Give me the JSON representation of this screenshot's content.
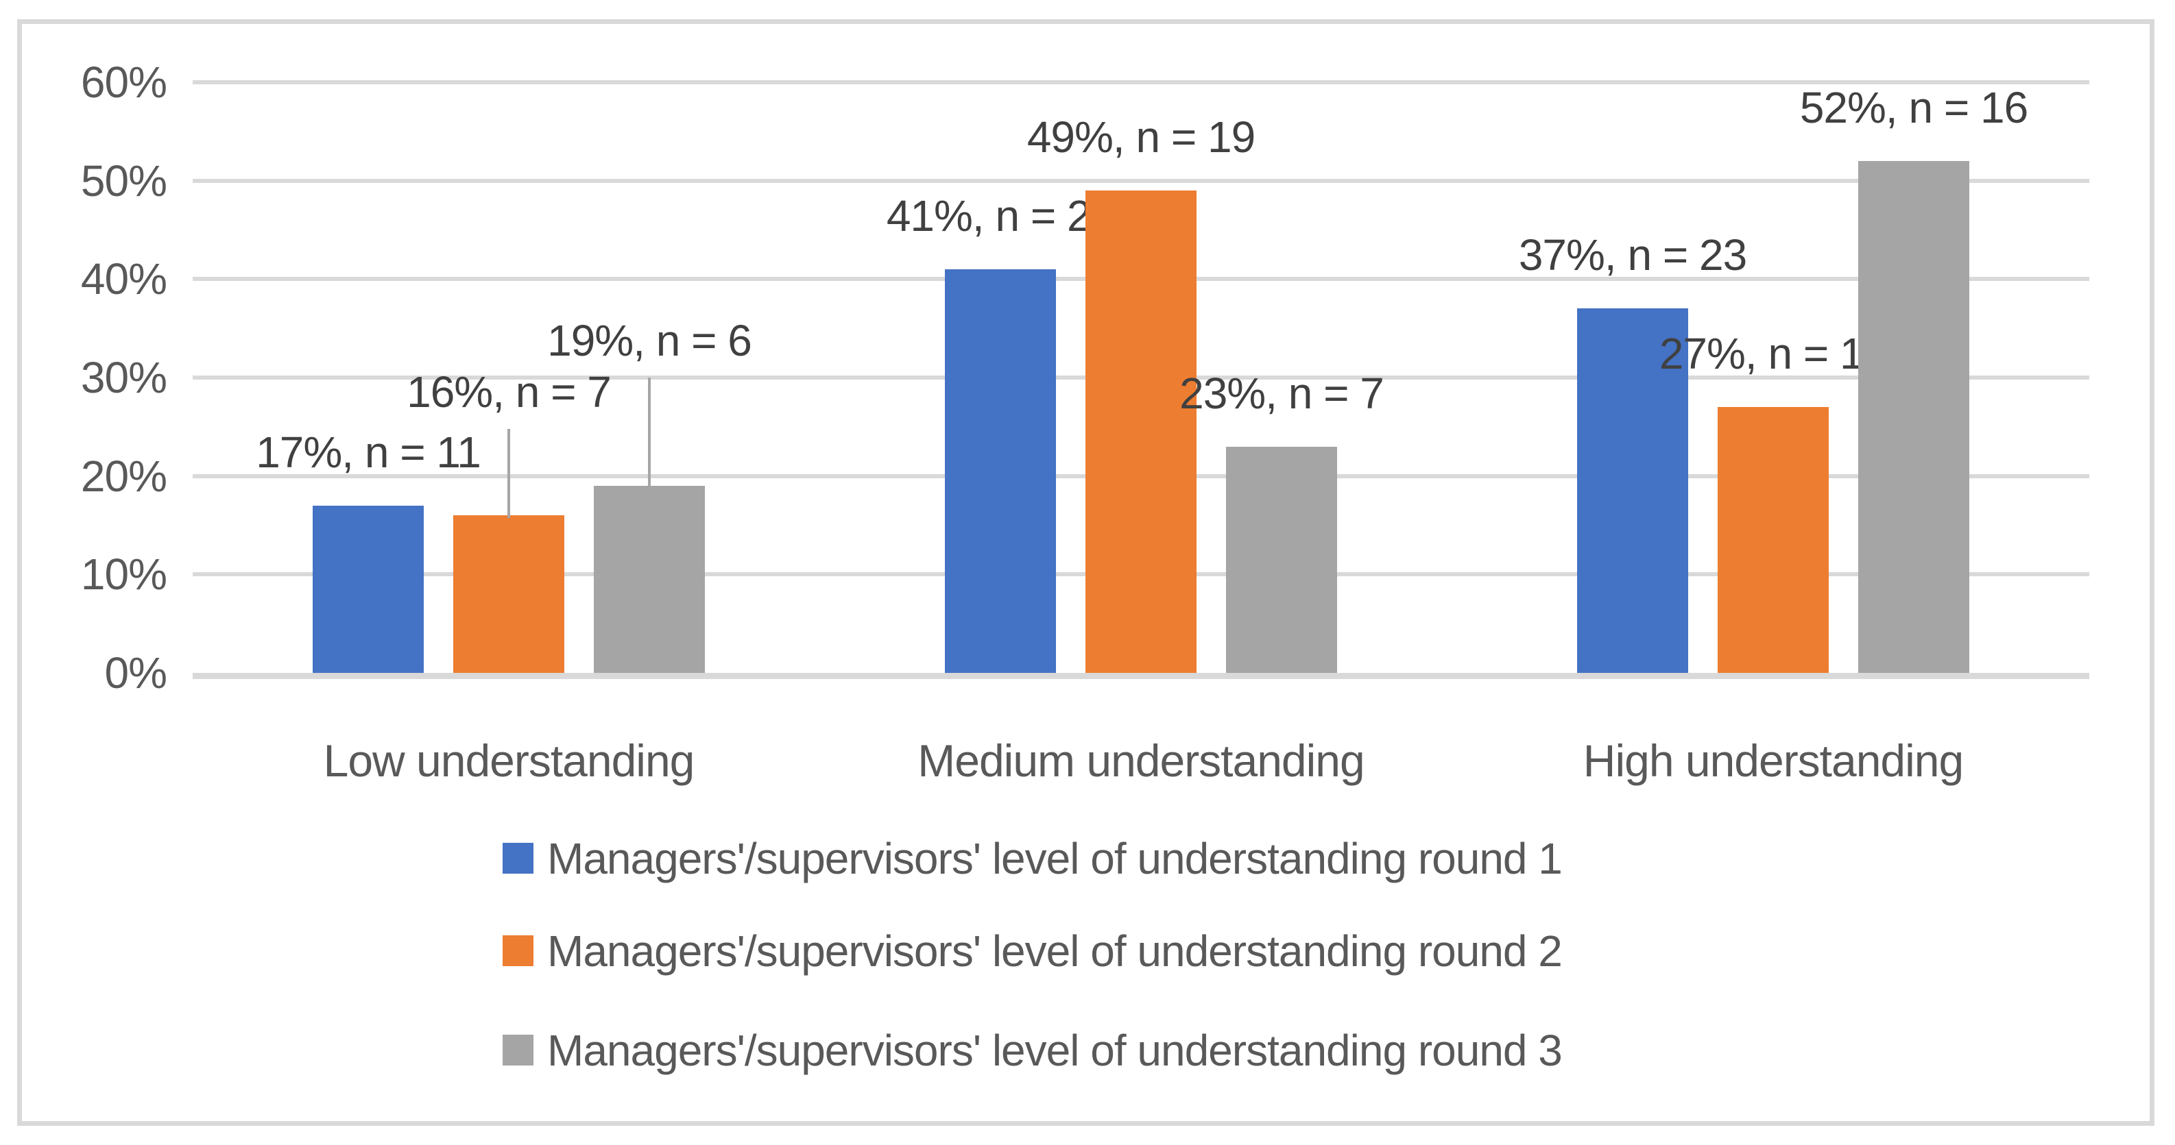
{
  "chart_data": {
    "type": "bar",
    "title": "",
    "categories": [
      "Low understanding",
      "Medium understanding",
      "High understanding"
    ],
    "series": [
      {
        "name": "Managers'/supervisors' level of understanding round 1",
        "color": "#4472C4",
        "values": [
          17,
          41,
          37
        ],
        "counts": [
          11,
          26,
          23
        ],
        "data_labels": [
          "17%, n = 11",
          "41%, n = 26",
          "37%, n = 23"
        ]
      },
      {
        "name": "Managers'/supervisors' level of understanding round 2",
        "color": "#ED7D31",
        "values": [
          16,
          49,
          27
        ],
        "counts": [
          7,
          19,
          10
        ],
        "data_labels": [
          "16%, n = 7",
          "49%, n = 19",
          "27%, n = 10"
        ]
      },
      {
        "name": "Managers'/supervisors' level of understanding round 3",
        "color": "#A5A5A5",
        "values": [
          19,
          23,
          52
        ],
        "counts": [
          6,
          7,
          16
        ],
        "data_labels": [
          "19%, n = 6",
          "23%, n = 7",
          "52%, n = 16"
        ]
      }
    ],
    "y_axis": {
      "ticks": [
        "60%",
        "50%",
        "40%",
        "30%",
        "20%",
        "10%",
        "0%"
      ],
      "min": 0,
      "max": 60,
      "unit": "percent"
    },
    "grid": true,
    "legend_position": "bottom",
    "label_layout": [
      [
        {
          "gap": 46,
          "leader": false
        },
        {
          "gap": 46,
          "leader": false
        },
        {
          "gap": 46,
          "leader": false
        }
      ],
      [
        {
          "gap": 148,
          "leader": true
        },
        {
          "gap": 46,
          "leader": false
        },
        {
          "gap": 46,
          "leader": false
        }
      ],
      [
        {
          "gap": 180,
          "leader": true
        },
        {
          "gap": 46,
          "leader": false
        },
        {
          "gap": 46,
          "leader": false
        }
      ]
    ]
  },
  "style": {
    "background": "#FFFFFF",
    "frame_border_color": "#D9D9D9",
    "grid_color": "#D9D9D9",
    "axis_line_color": "#D9D9D9",
    "leader_line_color": "#A6A6A6",
    "tick_text_color": "#595959",
    "category_text_color": "#595959",
    "legend_text_color": "#595959",
    "data_label_color": "#404040",
    "series_colors": [
      "#4472C4",
      "#ED7D31",
      "#A5A5A5"
    ]
  }
}
